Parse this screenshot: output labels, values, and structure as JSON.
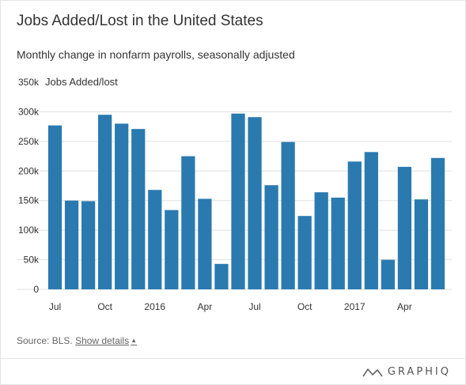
{
  "title": "Jobs Added/Lost in the United States",
  "subtitle": "Monthly change in nonfarm payrolls, seasonally adjusted",
  "source": {
    "prefix": "Source: BLS.",
    "details_label": "Show details"
  },
  "brand": {
    "name": "GRAPHIQ",
    "icon": "graphiq-logo-icon"
  },
  "colors": {
    "bar": "#2a7ab0",
    "text": "#333333",
    "axis_text": "#555555",
    "grid": "#e0e0e0"
  },
  "chart_data": {
    "type": "bar",
    "ylabel": "Jobs Added/lost",
    "ylim": [
      0,
      350000
    ],
    "yticks": [
      0,
      50000,
      100000,
      150000,
      200000,
      250000,
      300000,
      350000
    ],
    "ytick_labels": [
      "0",
      "50k",
      "100k",
      "150k",
      "200k",
      "250k",
      "300k",
      "350k"
    ],
    "grid": true,
    "categories": [
      "Jul 2015",
      "Aug 2015",
      "Sep 2015",
      "Oct 2015",
      "Nov 2015",
      "Dec 2015",
      "Jan 2016",
      "Feb 2016",
      "Mar 2016",
      "Apr 2016",
      "May 2016",
      "Jun 2016",
      "Jul 2016",
      "Aug 2016",
      "Sep 2016",
      "Oct 2016",
      "Nov 2016",
      "Dec 2016",
      "Jan 2017",
      "Feb 2017",
      "Mar 2017",
      "Apr 2017",
      "May 2017",
      "Jun 2017"
    ],
    "values": [
      277000,
      150000,
      149000,
      295000,
      280000,
      271000,
      168000,
      134000,
      225000,
      153000,
      43000,
      297000,
      291000,
      176000,
      249000,
      124000,
      164000,
      155000,
      216000,
      232000,
      50000,
      207000,
      152000,
      222000
    ],
    "xtick_labels": [
      {
        "index": 0,
        "label": "Jul"
      },
      {
        "index": 3,
        "label": "Oct"
      },
      {
        "index": 6,
        "label": "2016"
      },
      {
        "index": 9,
        "label": "Apr"
      },
      {
        "index": 12,
        "label": "Jul"
      },
      {
        "index": 15,
        "label": "Oct"
      },
      {
        "index": 18,
        "label": "2017"
      },
      {
        "index": 21,
        "label": "Apr"
      }
    ]
  }
}
